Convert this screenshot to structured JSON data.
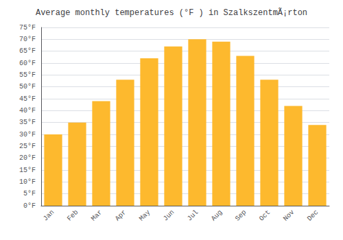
{
  "chart_data": {
    "type": "bar",
    "title": "Average monthly temperatures (°F ) in SzalkszentmÃ¡rton",
    "categories": [
      "Jan",
      "Feb",
      "Mar",
      "Apr",
      "May",
      "Jun",
      "Jul",
      "Aug",
      "Sep",
      "Oct",
      "Nov",
      "Dec"
    ],
    "values": [
      30,
      35,
      44,
      53,
      62,
      67,
      70,
      69,
      63,
      53,
      42,
      34
    ],
    "color": "#FDB92E",
    "ylim": [
      0,
      75
    ],
    "yticks": [
      {
        "value": 0,
        "label": "0°F"
      },
      {
        "value": 5,
        "label": "5°F"
      },
      {
        "value": 10,
        "label": "10°F"
      },
      {
        "value": 15,
        "label": "15°F"
      },
      {
        "value": 20,
        "label": "20°F"
      },
      {
        "value": 25,
        "label": "25°F"
      },
      {
        "value": 30,
        "label": "30°F"
      },
      {
        "value": 35,
        "label": "35°F"
      },
      {
        "value": 40,
        "label": "40°F"
      },
      {
        "value": 45,
        "label": "45°F"
      },
      {
        "value": 50,
        "label": "50°F"
      },
      {
        "value": 55,
        "label": "55°F"
      },
      {
        "value": 60,
        "label": "60°F"
      },
      {
        "value": 65,
        "label": "65°F"
      },
      {
        "value": 70,
        "label": "70°F"
      },
      {
        "value": 75,
        "label": "75°F"
      }
    ],
    "grid": true
  }
}
